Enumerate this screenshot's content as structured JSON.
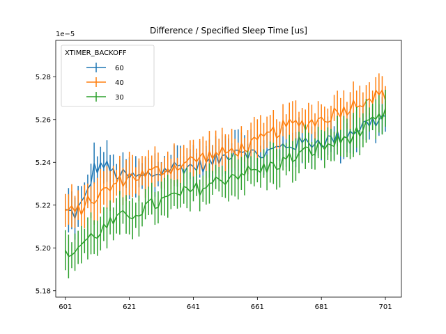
{
  "chart_data": {
    "type": "line",
    "title": "Difference / Specified Sleep Time [us]",
    "xlabel": "",
    "ylabel": "",
    "y_scale_label": "1e−5",
    "x_ticks": [
      601,
      621,
      641,
      661,
      681,
      701
    ],
    "y_ticks": [
      5.18,
      5.2,
      5.22,
      5.24,
      5.26,
      5.28
    ],
    "xlim": [
      598,
      706
    ],
    "ylim": [
      5.177,
      5.297
    ],
    "grid": false,
    "legend": {
      "title": "XTIMER_BACKOFF",
      "position": "top-left"
    },
    "x_range": {
      "start": 601,
      "end": 701
    },
    "series": [
      {
        "name": "60",
        "color": "#1f77b4",
        "anchors": [
          [
            601,
            5.217
          ],
          [
            604,
            5.216
          ],
          [
            607,
            5.222
          ],
          [
            610,
            5.237
          ],
          [
            613,
            5.239
          ],
          [
            616,
            5.235
          ],
          [
            620,
            5.233
          ],
          [
            625,
            5.233
          ],
          [
            630,
            5.235
          ],
          [
            635,
            5.238
          ],
          [
            641,
            5.238
          ],
          [
            645,
            5.239
          ],
          [
            650,
            5.242
          ],
          [
            655,
            5.247
          ],
          [
            661,
            5.243
          ],
          [
            665,
            5.245
          ],
          [
            670,
            5.248
          ],
          [
            675,
            5.249
          ],
          [
            681,
            5.25
          ],
          [
            685,
            5.251
          ],
          [
            690,
            5.254
          ],
          [
            695,
            5.258
          ],
          [
            701,
            5.261
          ]
        ],
        "err": 0.008
      },
      {
        "name": "40",
        "color": "#ff7f0e",
        "anchors": [
          [
            601,
            5.218
          ],
          [
            604,
            5.216
          ],
          [
            607,
            5.22
          ],
          [
            610,
            5.223
          ],
          [
            613,
            5.226
          ],
          [
            616,
            5.229
          ],
          [
            620,
            5.233
          ],
          [
            625,
            5.234
          ],
          [
            630,
            5.236
          ],
          [
            635,
            5.238
          ],
          [
            641,
            5.241
          ],
          [
            645,
            5.243
          ],
          [
            650,
            5.244
          ],
          [
            655,
            5.246
          ],
          [
            661,
            5.249
          ],
          [
            665,
            5.253
          ],
          [
            670,
            5.257
          ],
          [
            675,
            5.258
          ],
          [
            681,
            5.26
          ],
          [
            685,
            5.263
          ],
          [
            690,
            5.266
          ],
          [
            695,
            5.27
          ],
          [
            701,
            5.272
          ]
        ],
        "err": 0.008
      },
      {
        "name": "30",
        "color": "#2ca02c",
        "anchors": [
          [
            601,
            5.196
          ],
          [
            604,
            5.199
          ],
          [
            607,
            5.203
          ],
          [
            610,
            5.206
          ],
          [
            613,
            5.209
          ],
          [
            616,
            5.212
          ],
          [
            620,
            5.215
          ],
          [
            625,
            5.218
          ],
          [
            630,
            5.221
          ],
          [
            635,
            5.224
          ],
          [
            641,
            5.227
          ],
          [
            645,
            5.229
          ],
          [
            650,
            5.232
          ],
          [
            655,
            5.235
          ],
          [
            661,
            5.236
          ],
          [
            665,
            5.238
          ],
          [
            670,
            5.241
          ],
          [
            675,
            5.244
          ],
          [
            681,
            5.247
          ],
          [
            685,
            5.249
          ],
          [
            690,
            5.252
          ],
          [
            695,
            5.256
          ],
          [
            701,
            5.262
          ]
        ],
        "err": 0.008
      }
    ]
  }
}
